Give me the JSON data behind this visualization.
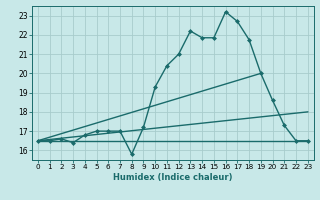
{
  "xlabel": "Humidex (Indice chaleur)",
  "bg_color": "#c8e8e8",
  "grid_color": "#a8cccc",
  "line_color": "#1a6b6b",
  "xlim": [
    -0.5,
    23.5
  ],
  "ylim": [
    15.5,
    23.5
  ],
  "yticks": [
    16,
    17,
    18,
    19,
    20,
    21,
    22,
    23
  ],
  "xticks": [
    0,
    1,
    2,
    3,
    4,
    5,
    6,
    7,
    8,
    9,
    10,
    11,
    12,
    13,
    14,
    15,
    16,
    17,
    18,
    19,
    20,
    21,
    22,
    23
  ],
  "series": [
    {
      "x": [
        0,
        23
      ],
      "y": [
        16.5,
        16.5
      ],
      "marker": false,
      "lw": 1.0
    },
    {
      "x": [
        0,
        19
      ],
      "y": [
        16.5,
        20.0
      ],
      "marker": false,
      "lw": 1.0
    },
    {
      "x": [
        0,
        23
      ],
      "y": [
        16.5,
        18.0
      ],
      "marker": false,
      "lw": 1.0
    },
    {
      "x": [
        0,
        1,
        2,
        3,
        4,
        5,
        6,
        7,
        8,
        9,
        10,
        11,
        12,
        13,
        14,
        15,
        16,
        17,
        18,
        19,
        20,
        21,
        22,
        23
      ],
      "y": [
        16.5,
        16.5,
        16.6,
        16.4,
        16.8,
        17.0,
        17.0,
        17.0,
        15.8,
        17.2,
        19.3,
        20.4,
        21.0,
        22.2,
        21.85,
        21.85,
        23.2,
        22.7,
        21.75,
        20.0,
        18.6,
        17.3,
        16.5,
        16.5
      ],
      "marker": true,
      "lw": 1.0
    }
  ]
}
